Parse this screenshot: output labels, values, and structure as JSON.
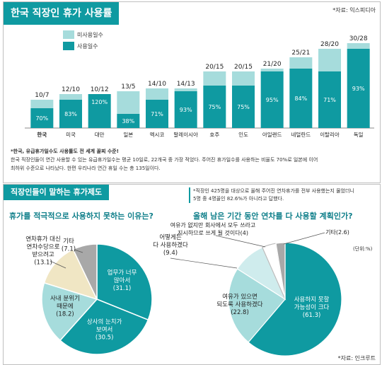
{
  "top": {
    "title": "한국 직장인 휴가 사용률",
    "source": "*자료: 익스피디아",
    "legend_unused": "미사용일수",
    "legend_used": "사용일수",
    "note_lines": [
      "*한국, 유급휴가일수도 사용률도 전 세계 꼴찌 수준!",
      "한국 직장인들이 연간 사용할 수 있는 유급휴가일수는 평균 10일로, 22개국 중 가장 적었다. 주어진 휴가일수를 사용하는 비율도 70%로 일본에 이어",
      "최하위 수준으로 나타났다. 한편 우리나라 연간 휴일 수는 총 135일이다."
    ]
  },
  "bottom": {
    "title": "직장인들이 말하는 휴가제도",
    "note_lines": [
      "*직장인 425명을 대상으로 올해 주어진 연차휴가를 전부 사용했는지 물었더니",
      "5명 중 4명꼴인 82.6%가 아니라고 답했다."
    ],
    "left_title": "휴가를 적극적으로 사용하지 못하는 이유는?",
    "right_title": "올해 남은 기간 동안 연차를 다 사용할 계획인가?",
    "unit": "(단위:%)",
    "source": "*자료: 인크루트"
  },
  "colors": {
    "teal": "#0f9aa1",
    "light_teal": "#a6dcdc",
    "pale_teal": "#cfeced",
    "beige": "#f0e6c4",
    "gray": "#a8a8a8",
    "white": "#ffffff"
  },
  "chart_data": [
    {
      "type": "bar",
      "title": "한국 직장인 휴가 사용률",
      "categories": [
        "한국",
        "미국",
        "대만",
        "일본",
        "멕시코",
        "말레이시아",
        "호주",
        "인도",
        "아일랜드",
        "네덜란드",
        "이탈리아",
        "독일"
      ],
      "totals_label": [
        "10/7",
        "12/10",
        "10/12",
        "13/5",
        "14/10",
        "14/13",
        "20/15",
        "20/15",
        "21/20",
        "25/21",
        "28/20",
        "30/28"
      ],
      "series": [
        {
          "name": "사용일수",
          "values": [
            7,
            10,
            12,
            5,
            10,
            13,
            15,
            15,
            20,
            21,
            20,
            28
          ]
        },
        {
          "name": "미사용일수",
          "values": [
            3,
            2,
            0,
            8,
            4,
            1,
            5,
            5,
            1,
            4,
            8,
            2
          ]
        }
      ],
      "allowance": [
        10,
        12,
        10,
        13,
        14,
        14,
        20,
        20,
        21,
        25,
        28,
        30
      ],
      "used_pct_labels": [
        "70%",
        "83%",
        "120%",
        "38%",
        "71%",
        "93%",
        "75%",
        "75%",
        "95%",
        "84%",
        "71%",
        "93%"
      ],
      "ylim": [
        0,
        30
      ],
      "grid": false,
      "legend": "top-left"
    },
    {
      "type": "pie",
      "title": "휴가를 적극적으로 사용하지 못하는 이유는?",
      "slices": [
        {
          "label": [
            "업무가 너무",
            "많아서"
          ],
          "value": 31.1,
          "value_text": "(31.1)",
          "color": "#0f9aa1"
        },
        {
          "label": [
            "상사의 눈치가",
            "보여서"
          ],
          "value": 30.5,
          "value_text": "(30.5)",
          "color": "#0f9aa1"
        },
        {
          "label": [
            "사내 분위기",
            "때문에"
          ],
          "value": 18.2,
          "value_text": "(18.2)",
          "color": "#a6dcdc"
        },
        {
          "label": [
            "연차휴가 대신",
            "연차수당으로",
            "받으려고"
          ],
          "value": 13.1,
          "value_text": "(13.1)",
          "color": "#f0e6c4"
        },
        {
          "label": [
            "기타"
          ],
          "value": 7.1,
          "value_text": "(7.1)",
          "color": "#a8a8a8"
        }
      ]
    },
    {
      "type": "pie",
      "title": "올해 남은 기간 동안 연차를 다 사용할 계획인가?",
      "slices": [
        {
          "label": [
            "사용하지 못할",
            "가능성이 크다"
          ],
          "value": 61.3,
          "value_text": "(61.3)",
          "color": "#0f9aa1"
        },
        {
          "label": [
            "여유가 있으면",
            "되도록 사용하겠다"
          ],
          "value": 22.8,
          "value_text": "(22.8)",
          "color": "#a6dcdc"
        },
        {
          "label": [
            "어떻게든",
            "다 사용하겠다"
          ],
          "value": 9.4,
          "value_text": "(9.4)",
          "color": "#cfeced"
        },
        {
          "label": [
            "여유가 없지만 회사에서 모두 쓰라고",
            "지시하므로 쓰게 될 것이다"
          ],
          "value": 4,
          "value_text": "(4)",
          "color": "#ffffff"
        },
        {
          "label": [
            "기타"
          ],
          "value": 2.6,
          "value_text": "(2.6)",
          "color": "#a8a8a8"
        }
      ]
    }
  ]
}
